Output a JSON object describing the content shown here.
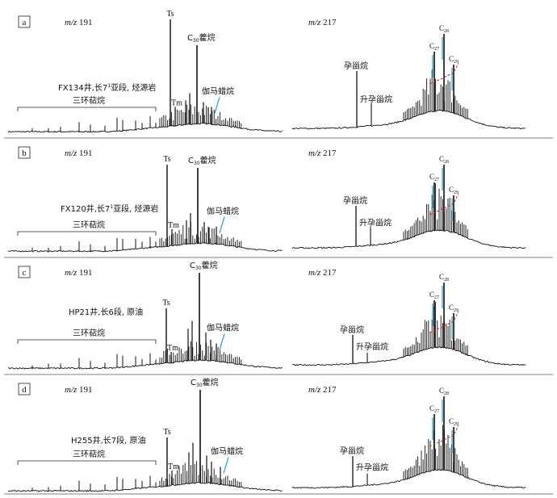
{
  "panels": [
    {
      "letter": "a",
      "left_mz": "m/z",
      "left_mz_value": "191",
      "right_mz": "m/z",
      "right_mz_value": "217",
      "sample": "FX134井,长7",
      "sample_sup": "1",
      "sample_tail": "亚段, 烃源岩",
      "tricyclic": "三环萜烷",
      "ts": "Ts",
      "tm": "Tm",
      "c30_prefix": "C",
      "c30_sub": "30",
      "c30_tail": "藿烷",
      "gammacerane": "伽马蜡烷",
      "pregnane": "孕甾烷",
      "homopregnane": "升孕甾烷",
      "c27": "27",
      "c28": "28",
      "c29": "29"
    },
    {
      "letter": "b",
      "left_mz": "m/z",
      "left_mz_value": "191",
      "right_mz": "m/z",
      "right_mz_value": "217",
      "sample": "FX120井,长7",
      "sample_sup": "1",
      "sample_tail": "亚段, 烃源岩",
      "tricyclic": "三环萜烷",
      "ts": "Ts",
      "tm": "Tm",
      "c30_prefix": "C",
      "c30_sub": "30",
      "c30_tail": "藿烷",
      "gammacerane": "伽马蜡烷",
      "pregnane": "孕甾烷",
      "homopregnane": "升孕甾烷",
      "c27": "27",
      "c28": "28",
      "c29": "29"
    },
    {
      "letter": "c",
      "left_mz": "m/z",
      "left_mz_value": "191",
      "right_mz": "m/z",
      "right_mz_value": "217",
      "sample": "HP21井,长6段, 原油",
      "sample_sup": "",
      "sample_tail": "",
      "tricyclic": "三环萜烷",
      "ts": "Ts",
      "tm": "Tm",
      "c30_prefix": "C",
      "c30_sub": "30",
      "c30_tail": "藿烷",
      "gammacerane": "伽马蜡烷",
      "pregnane": "孕甾烷",
      "homopregnane": "升孕甾烷",
      "c27": "27",
      "c28": "28",
      "c29": "29"
    },
    {
      "letter": "d",
      "left_mz": "m/z",
      "left_mz_value": "191",
      "right_mz": "m/z",
      "right_mz_value": "217",
      "sample": "H255井,长7段, 原油",
      "sample_sup": "",
      "sample_tail": "",
      "tricyclic": "三环萜烷",
      "ts": "Ts",
      "tm": "Tm",
      "c30_prefix": "C",
      "c30_sub": "30",
      "c30_tail": "藿烷",
      "gammacerane": "伽马蜡烷",
      "pregnane": "孕甾烷",
      "homopregnane": "升孕甾烷",
      "c27": "27",
      "c28": "28",
      "c29": "29"
    }
  ],
  "colors": {
    "trace": "#111111",
    "marker_line": "#1aa0dc",
    "sterane_trend": "#dd2222"
  }
}
